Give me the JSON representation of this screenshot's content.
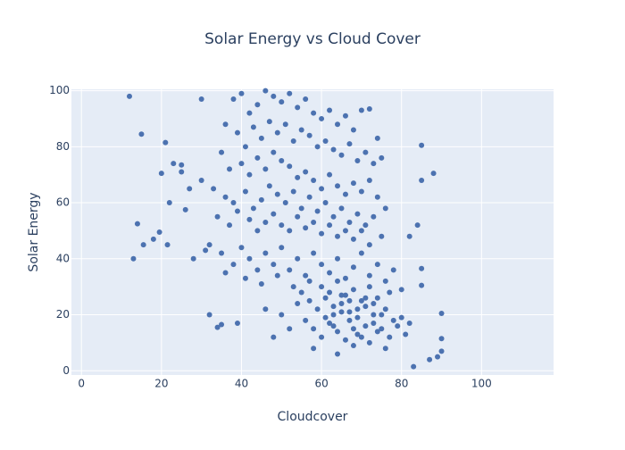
{
  "chart_data": {
    "type": "scatter",
    "title": "Solar Energy vs Cloud Cover",
    "x_label": "Cloudcover",
    "y_label": "Solar Energy",
    "color": "#4c72b0",
    "grid": true,
    "xlim": [
      -2.5,
      118
    ],
    "ylim": [
      -1.5,
      100.5
    ],
    "xticks": [
      0,
      20,
      40,
      60,
      80,
      100
    ],
    "yticks": [
      0,
      20,
      40,
      60,
      80,
      100
    ],
    "x": [
      38,
      40,
      42,
      44,
      46,
      48,
      50,
      52,
      54,
      56,
      58,
      60,
      62,
      64,
      66,
      68,
      70,
      72,
      74,
      36,
      39,
      41,
      43,
      45,
      47,
      49,
      51,
      53,
      55,
      57,
      59,
      61,
      63,
      65,
      67,
      69,
      71,
      73,
      75,
      35,
      37,
      40,
      42,
      44,
      46,
      48,
      50,
      52,
      54,
      56,
      58,
      60,
      62,
      64,
      66,
      68,
      70,
      72,
      74,
      76,
      33,
      36,
      38,
      41,
      43,
      45,
      47,
      49,
      51,
      53,
      55,
      57,
      59,
      61,
      63,
      65,
      67,
      69,
      71,
      73,
      34,
      37,
      39,
      42,
      44,
      46,
      48,
      50,
      52,
      54,
      56,
      58,
      60,
      62,
      64,
      66,
      68,
      70,
      72,
      75,
      32,
      35,
      38,
      40,
      42,
      44,
      46,
      48,
      50,
      52,
      54,
      56,
      58,
      60,
      62,
      64,
      66,
      68,
      70,
      72,
      74,
      76,
      78,
      80,
      36,
      41,
      45,
      49,
      53,
      57,
      55,
      57,
      59,
      61,
      63,
      65,
      67,
      69,
      71,
      73,
      56,
      58,
      60,
      62,
      64,
      66,
      68,
      70,
      72,
      74,
      60,
      62,
      64,
      66,
      68,
      70,
      72,
      74,
      76,
      78,
      63,
      65,
      67,
      69,
      71,
      73,
      75,
      77,
      79,
      81,
      50,
      52,
      54,
      48,
      46,
      58,
      64,
      68,
      76,
      80,
      61,
      63,
      65,
      67,
      69,
      71,
      73,
      75,
      77,
      82,
      12,
      15,
      13,
      14,
      15.5,
      18,
      19.5,
      21,
      20,
      21.5,
      22,
      23,
      25,
      25,
      26,
      27,
      28,
      30,
      30,
      31,
      32,
      34,
      35,
      39,
      88,
      85,
      85,
      90,
      90,
      90,
      89,
      87,
      83,
      85,
      85,
      84,
      82
    ],
    "values": [
      97,
      99,
      92,
      95,
      100,
      98,
      96,
      99,
      94,
      97,
      92,
      90,
      93,
      88,
      91,
      86,
      93,
      93.5,
      83,
      88,
      85,
      80,
      87,
      83,
      89,
      85,
      88,
      82,
      86,
      84,
      80,
      82,
      79,
      77,
      81,
      75,
      78,
      74,
      76,
      78,
      72,
      74,
      70,
      76,
      72,
      78,
      75,
      73,
      69,
      71,
      68,
      65,
      70,
      66,
      63,
      67,
      64,
      68,
      62,
      58,
      65,
      62,
      60,
      64,
      58,
      61,
      66,
      63,
      60,
      64,
      58,
      62,
      57,
      60,
      55,
      58,
      53,
      56,
      52,
      55,
      55,
      52,
      57,
      54,
      50,
      53,
      56,
      52,
      50,
      55,
      51,
      53,
      49,
      52,
      48,
      50,
      47,
      50,
      45,
      48,
      45,
      42,
      38,
      44,
      40,
      36,
      42,
      38,
      44,
      36,
      40,
      34,
      42,
      38,
      35,
      40,
      33,
      37,
      42,
      34,
      38,
      32,
      36,
      29,
      35,
      33,
      31,
      34,
      30,
      32,
      28,
      25,
      22,
      26,
      20,
      24,
      18,
      22,
      16,
      20,
      18,
      15,
      12,
      17,
      14,
      11,
      15,
      12,
      10,
      14,
      30,
      28,
      32,
      27,
      29,
      25,
      30,
      26,
      22,
      18,
      23,
      21,
      25,
      19,
      23,
      17,
      15,
      12,
      16,
      13,
      20,
      15,
      24,
      12,
      22,
      8,
      6,
      9,
      8,
      19,
      19,
      16,
      27,
      21,
      13,
      26,
      24,
      20,
      28,
      17,
      98,
      84.5,
      40,
      52.5,
      45,
      47,
      49.5,
      81.5,
      70.5,
      45,
      60,
      74,
      73.5,
      71,
      57.5,
      65,
      40,
      97,
      68,
      43,
      20,
      15.5,
      16.5,
      17,
      70.5,
      80.5,
      68,
      20.5,
      11.5,
      7,
      5,
      4,
      1.5,
      30.5,
      36.5,
      52,
      48
    ]
  }
}
